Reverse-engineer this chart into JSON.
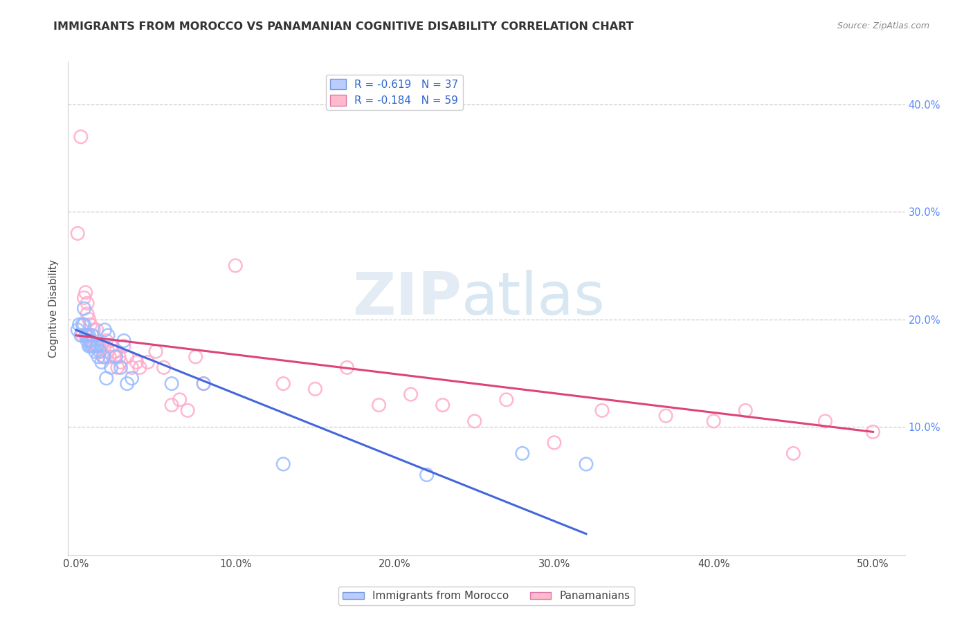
{
  "title": "IMMIGRANTS FROM MOROCCO VS PANAMANIAN COGNITIVE DISABILITY CORRELATION CHART",
  "source": "Source: ZipAtlas.com",
  "xlabel_vals": [
    0.0,
    0.1,
    0.2,
    0.3,
    0.4,
    0.5
  ],
  "xlabel_ticks": [
    "0.0%",
    "10.0%",
    "20.0%",
    "30.0%",
    "40.0%",
    "50.0%"
  ],
  "ylabel": "Cognitive Disability",
  "right_ytick_vals": [
    0.1,
    0.2,
    0.3,
    0.4
  ],
  "right_ytick_labels": [
    "10.0%",
    "20.0%",
    "30.0%",
    "40.0%"
  ],
  "ylim": [
    -0.02,
    0.44
  ],
  "xlim": [
    -0.005,
    0.52
  ],
  "blue_R": -0.619,
  "blue_N": 37,
  "pink_R": -0.184,
  "pink_N": 59,
  "blue_scatter_color": "#99bbff",
  "pink_scatter_color": "#ffaacc",
  "blue_line_color": "#4466dd",
  "pink_line_color": "#dd4477",
  "legend_label_blue": "Immigrants from Morocco",
  "legend_label_pink": "Panamanians",
  "blue_line_x0": 0.0,
  "blue_line_y0": 0.19,
  "blue_line_x1": 0.32,
  "blue_line_y1": 0.0,
  "pink_line_x0": 0.0,
  "pink_line_y0": 0.185,
  "pink_line_x1": 0.5,
  "pink_line_y1": 0.095,
  "blue_x": [
    0.001,
    0.002,
    0.003,
    0.004,
    0.005,
    0.005,
    0.006,
    0.007,
    0.007,
    0.008,
    0.008,
    0.009,
    0.009,
    0.01,
    0.01,
    0.011,
    0.012,
    0.013,
    0.014,
    0.015,
    0.016,
    0.017,
    0.018,
    0.019,
    0.02,
    0.022,
    0.025,
    0.028,
    0.03,
    0.032,
    0.035,
    0.06,
    0.08,
    0.13,
    0.22,
    0.28,
    0.32
  ],
  "blue_y": [
    0.19,
    0.195,
    0.185,
    0.195,
    0.21,
    0.195,
    0.185,
    0.185,
    0.18,
    0.185,
    0.175,
    0.18,
    0.175,
    0.185,
    0.175,
    0.175,
    0.17,
    0.175,
    0.165,
    0.17,
    0.16,
    0.165,
    0.19,
    0.145,
    0.185,
    0.155,
    0.165,
    0.155,
    0.18,
    0.14,
    0.145,
    0.14,
    0.14,
    0.065,
    0.055,
    0.075,
    0.065
  ],
  "pink_x": [
    0.001,
    0.003,
    0.004,
    0.005,
    0.006,
    0.007,
    0.007,
    0.008,
    0.009,
    0.009,
    0.01,
    0.011,
    0.012,
    0.013,
    0.013,
    0.014,
    0.015,
    0.016,
    0.017,
    0.018,
    0.019,
    0.02,
    0.021,
    0.022,
    0.024,
    0.025,
    0.026,
    0.027,
    0.028,
    0.03,
    0.032,
    0.035,
    0.038,
    0.04,
    0.045,
    0.05,
    0.055,
    0.06,
    0.065,
    0.07,
    0.075,
    0.08,
    0.1,
    0.13,
    0.15,
    0.17,
    0.19,
    0.21,
    0.23,
    0.25,
    0.27,
    0.3,
    0.33,
    0.37,
    0.4,
    0.42,
    0.45,
    0.47,
    0.5
  ],
  "pink_y": [
    0.28,
    0.37,
    0.185,
    0.22,
    0.225,
    0.215,
    0.205,
    0.2,
    0.195,
    0.18,
    0.185,
    0.19,
    0.175,
    0.19,
    0.175,
    0.175,
    0.17,
    0.175,
    0.165,
    0.165,
    0.18,
    0.17,
    0.165,
    0.175,
    0.165,
    0.17,
    0.155,
    0.165,
    0.16,
    0.175,
    0.165,
    0.155,
    0.16,
    0.155,
    0.16,
    0.17,
    0.155,
    0.12,
    0.125,
    0.115,
    0.165,
    0.14,
    0.25,
    0.14,
    0.135,
    0.155,
    0.12,
    0.13,
    0.12,
    0.105,
    0.125,
    0.085,
    0.115,
    0.11,
    0.105,
    0.115,
    0.075,
    0.105,
    0.095
  ]
}
